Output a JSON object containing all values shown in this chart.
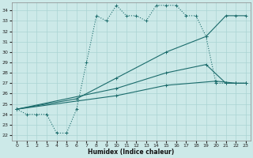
{
  "xlabel": "Humidex (Indice chaleur)",
  "bg_color": "#cce9e8",
  "line_color": "#1a6b6b",
  "grid_color": "#aad4d3",
  "xlim": [
    -0.5,
    23.5
  ],
  "ylim": [
    21.5,
    34.8
  ],
  "xticks": [
    0,
    1,
    2,
    3,
    4,
    5,
    6,
    7,
    8,
    9,
    10,
    11,
    12,
    13,
    14,
    15,
    16,
    17,
    18,
    19,
    20,
    21,
    22,
    23
  ],
  "yticks": [
    22,
    23,
    24,
    25,
    26,
    27,
    28,
    29,
    30,
    31,
    32,
    33,
    34
  ],
  "curve1_x": [
    0,
    1,
    2,
    3,
    4,
    5,
    6,
    7,
    8,
    9,
    10,
    11,
    12,
    13,
    14,
    15,
    16,
    17,
    18,
    19,
    20,
    21,
    22,
    23
  ],
  "curve1_y": [
    24.5,
    24.0,
    24.0,
    24.0,
    22.2,
    22.2,
    24.5,
    29.0,
    33.5,
    33.0,
    34.5,
    33.5,
    33.5,
    33.0,
    34.5,
    34.5,
    34.5,
    33.5,
    33.5,
    31.5,
    27.0,
    27.0,
    27.0,
    27.0
  ],
  "curve2_x": [
    0,
    6,
    10,
    15,
    19,
    21,
    22,
    23
  ],
  "curve2_y": [
    24.5,
    25.5,
    27.5,
    30.0,
    31.5,
    33.5,
    33.5,
    33.5
  ],
  "curve3_x": [
    0,
    10,
    15,
    19,
    21,
    22,
    23
  ],
  "curve3_y": [
    24.5,
    26.5,
    28.0,
    28.8,
    27.0,
    27.0,
    27.0
  ],
  "curve4_x": [
    0,
    10,
    15,
    20,
    22,
    23
  ],
  "curve4_y": [
    24.5,
    25.8,
    26.8,
    27.2,
    27.0,
    27.0
  ]
}
